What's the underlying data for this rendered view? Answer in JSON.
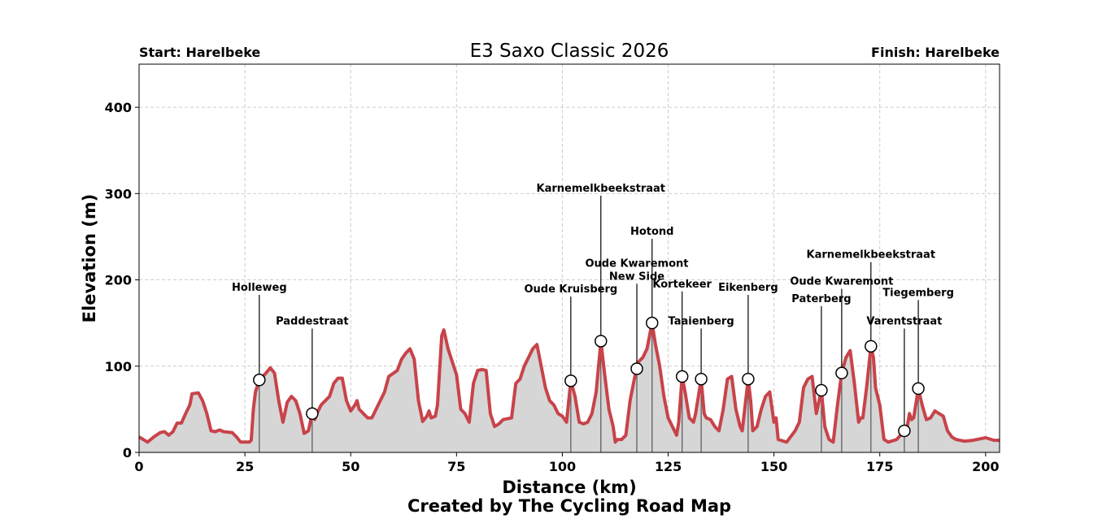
{
  "chart_data": {
    "type": "area",
    "title": "E3 Saxo Classic 2026",
    "start_label": "Start: Harelbeke",
    "finish_label": "Finish: Harelbeke",
    "xlabel": "Distance (km)",
    "ylabel": "Elevation (m)",
    "footer": "Created by The Cycling Road Map",
    "xlim": [
      0,
      203.3
    ],
    "ylim": [
      0,
      450
    ],
    "xticks": [
      0,
      25,
      50,
      75,
      100,
      125,
      150,
      175,
      200
    ],
    "yticks": [
      0,
      100,
      200,
      300,
      400
    ],
    "grid": true,
    "colors": {
      "line": "#c8434a",
      "fill": "#d6d6d6",
      "grid": "#cccccc"
    },
    "profile": {
      "x": [
        0,
        2,
        3.5,
        5,
        6,
        7,
        8,
        9,
        10,
        11,
        12,
        12.5,
        14,
        15,
        16,
        17,
        18,
        19,
        20,
        22,
        23,
        24,
        26,
        26.5,
        27,
        27.5,
        28.4,
        30,
        31,
        32,
        33,
        34,
        35,
        36,
        37,
        38,
        39,
        40,
        40.9,
        41.5,
        42,
        43,
        44,
        45,
        46,
        47,
        48,
        49,
        50,
        51,
        51.5,
        52,
        53,
        54,
        55,
        56,
        57,
        58,
        59,
        61,
        62,
        63,
        64,
        65,
        66,
        67,
        68,
        68.5,
        69,
        70,
        70.5,
        71,
        71.5,
        72,
        73,
        74,
        75,
        76,
        77,
        78,
        79,
        80,
        81,
        82,
        83,
        84,
        85,
        86,
        88,
        89,
        90,
        91,
        92,
        93,
        94,
        95,
        96,
        97,
        98,
        99,
        100,
        101,
        102,
        103,
        104,
        105,
        106,
        107,
        108,
        109.1,
        110,
        111,
        112,
        112.5,
        113,
        114,
        115,
        116,
        117,
        117.6,
        118,
        119,
        120,
        121.2,
        122,
        123,
        124,
        125,
        126,
        127,
        127.5,
        128.3,
        129,
        130,
        131,
        131.5,
        132.8,
        133.5,
        134,
        135,
        136,
        137,
        138,
        139,
        140,
        141,
        142,
        142.5,
        143.9,
        144.5,
        145,
        146,
        147,
        148,
        149,
        150,
        150.5,
        151,
        153,
        155,
        156,
        157,
        158,
        159,
        160,
        161.2,
        162,
        163,
        164,
        165,
        166,
        167,
        168,
        169,
        170,
        170.5,
        171,
        172,
        172.9,
        173.5,
        174,
        175,
        176,
        177,
        179,
        180.8,
        181.5,
        182,
        182.5,
        183,
        184.1,
        185,
        186,
        187,
        188,
        189,
        190,
        191,
        192,
        193,
        195,
        197,
        200,
        202,
        203.3
      ],
      "y": [
        18,
        12,
        18,
        23,
        24,
        20,
        24,
        34,
        34,
        45,
        55,
        68,
        69,
        60,
        45,
        25,
        24,
        26,
        24,
        23,
        18,
        12,
        12,
        14,
        50,
        70,
        84,
        92,
        98,
        92,
        60,
        35,
        58,
        65,
        60,
        45,
        22,
        25,
        45,
        38,
        45,
        55,
        60,
        65,
        80,
        86,
        86,
        60,
        48,
        55,
        60,
        50,
        45,
        40,
        40,
        50,
        60,
        70,
        88,
        95,
        108,
        115,
        120,
        108,
        60,
        36,
        42,
        48,
        40,
        42,
        55,
        95,
        135,
        142,
        120,
        105,
        90,
        50,
        45,
        35,
        80,
        95,
        96,
        95,
        45,
        30,
        33,
        38,
        40,
        80,
        85,
        100,
        110,
        120,
        125,
        100,
        75,
        60,
        55,
        45,
        42,
        35,
        83,
        65,
        35,
        33,
        35,
        45,
        70,
        129,
        90,
        50,
        30,
        12,
        15,
        15,
        20,
        60,
        85,
        97,
        105,
        110,
        120,
        150,
        125,
        100,
        65,
        40,
        30,
        20,
        35,
        88,
        70,
        40,
        35,
        45,
        85,
        45,
        40,
        38,
        30,
        25,
        50,
        85,
        88,
        50,
        30,
        25,
        85,
        60,
        25,
        30,
        50,
        65,
        70,
        35,
        40,
        15,
        12,
        25,
        35,
        75,
        85,
        88,
        45,
        72,
        30,
        15,
        12,
        55,
        92,
        110,
        118,
        80,
        35,
        40,
        40,
        80,
        123,
        110,
        75,
        55,
        15,
        12,
        15,
        25,
        30,
        45,
        38,
        40,
        74,
        55,
        38,
        40,
        48,
        45,
        42,
        25,
        18,
        15,
        13,
        14,
        17,
        14,
        14
      ]
    },
    "climbs": [
      {
        "name": "Holleweg",
        "km": 28.4,
        "elev": 84
      },
      {
        "name": "Paddestraat",
        "km": 40.9,
        "elev": 45
      },
      {
        "name": "Oude Kruisberg",
        "km": 102.0,
        "elev": 83
      },
      {
        "name": "Karnemelkbeekstraat",
        "km": 109.1,
        "elev": 129
      },
      {
        "name": "Oude Kwaremont\nNew Side",
        "km": 117.6,
        "elev": 97
      },
      {
        "name": "Hotond",
        "km": 121.2,
        "elev": 150
      },
      {
        "name": "Kortekeer",
        "km": 128.3,
        "elev": 88
      },
      {
        "name": "Taaienberg",
        "km": 132.8,
        "elev": 85
      },
      {
        "name": "Eikenberg",
        "km": 143.9,
        "elev": 85
      },
      {
        "name": "Paterberg",
        "km": 161.2,
        "elev": 72
      },
      {
        "name": "Oude Kwaremont",
        "km": 166.0,
        "elev": 92
      },
      {
        "name": "Karnemelkbeekstraat",
        "km": 172.9,
        "elev": 123
      },
      {
        "name": "Varentstraat",
        "km": 180.8,
        "elev": 25
      },
      {
        "name": "Tiegemberg",
        "km": 184.1,
        "elev": 74
      }
    ]
  }
}
